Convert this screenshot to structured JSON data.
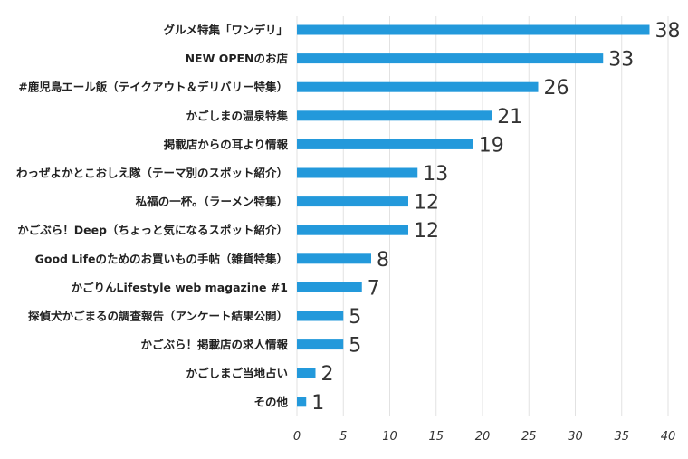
{
  "chart_data": {
    "type": "bar",
    "orientation": "horizontal",
    "categories": [
      "グルメ特集「ワンデリ」",
      "NEW OPENのお店",
      "#鹿児島エール飯（テイクアウト＆デリバリー特集）",
      "かごしまの温泉特集",
      "掲載店からの耳より情報",
      "わっぜよかとこおしえ隊（テーマ別のスポット紹介）",
      "私福の一杯。（ラーメン特集）",
      "かごぶら！Deep（ちょっと気になるスポット紹介）",
      "Good Lifeのためのお買いもの手帖（雑貨特集）",
      "かごりんLifestyle web magazine #1",
      "探偵犬かごまるの調査報告（アンケート結果公開）",
      "かごぶら！掲載店の求人情報",
      "かごしまご当地占い",
      "その他"
    ],
    "values": [
      38,
      33,
      26,
      21,
      19,
      13,
      12,
      12,
      8,
      7,
      5,
      5,
      2,
      1
    ],
    "xlim": [
      0,
      40
    ],
    "xticks": [
      0,
      5,
      10,
      15,
      20,
      25,
      30,
      35,
      40
    ],
    "grid": "vertical",
    "bar_color": "#2399db",
    "data_labels": true
  }
}
